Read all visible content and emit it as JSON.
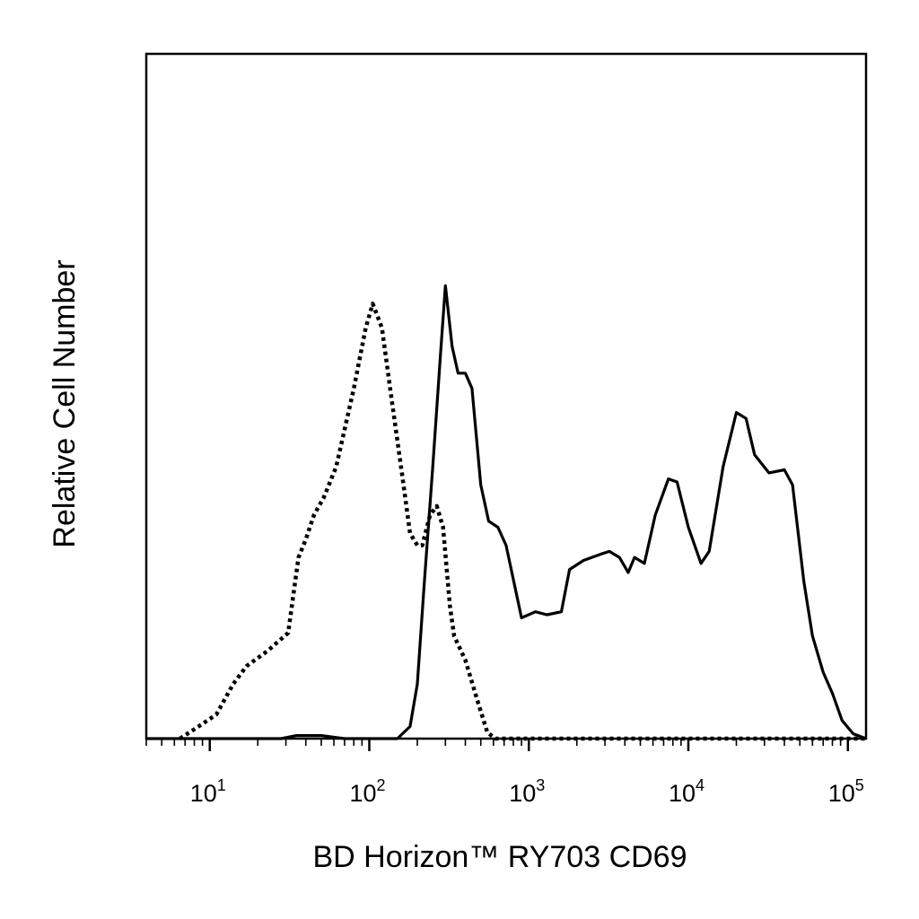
{
  "chart_data": {
    "type": "line",
    "title": "",
    "xlabel": "BD Horizon™ RY703 CD69",
    "ylabel": "Relative Cell Number",
    "x_scale": "log",
    "xlim": [
      4,
      130000
    ],
    "ylim": [
      0,
      1
    ],
    "grid": false,
    "legend": "none",
    "x_tick_labels": [
      {
        "value": 10,
        "base": "10",
        "exp": "1"
      },
      {
        "value": 100,
        "base": "10",
        "exp": "2"
      },
      {
        "value": 1000,
        "base": "10",
        "exp": "3"
      },
      {
        "value": 10000,
        "base": "10",
        "exp": "4"
      },
      {
        "value": 100000,
        "base": "10",
        "exp": "5"
      }
    ],
    "series": [
      {
        "style": "dotted",
        "color": "#000000",
        "points": [
          [
            6.5,
            0.0
          ],
          [
            8.5,
            0.02
          ],
          [
            11,
            0.04
          ],
          [
            14,
            0.09
          ],
          [
            17,
            0.12
          ],
          [
            23,
            0.145
          ],
          [
            31,
            0.175
          ],
          [
            36,
            0.3
          ],
          [
            40,
            0.33
          ],
          [
            45,
            0.37
          ],
          [
            52,
            0.4
          ],
          [
            62,
            0.45
          ],
          [
            80,
            0.58
          ],
          [
            95,
            0.68
          ],
          [
            105,
            0.72
          ],
          [
            120,
            0.68
          ],
          [
            135,
            0.58
          ],
          [
            160,
            0.44
          ],
          [
            180,
            0.34
          ],
          [
            200,
            0.32
          ],
          [
            215,
            0.32
          ],
          [
            240,
            0.37
          ],
          [
            265,
            0.385
          ],
          [
            290,
            0.35
          ],
          [
            320,
            0.22
          ],
          [
            340,
            0.17
          ],
          [
            400,
            0.13
          ],
          [
            480,
            0.06
          ],
          [
            550,
            0.01
          ],
          [
            620,
            0.0
          ],
          [
            1000,
            0.0
          ],
          [
            10000,
            0.0
          ],
          [
            130000,
            0.0
          ]
        ]
      },
      {
        "style": "solid",
        "color": "#000000",
        "points": [
          [
            4,
            0.0
          ],
          [
            28,
            0.0
          ],
          [
            35,
            0.005
          ],
          [
            50,
            0.005
          ],
          [
            70,
            0.0
          ],
          [
            150,
            0.0
          ],
          [
            180,
            0.02
          ],
          [
            200,
            0.09
          ],
          [
            220,
            0.25
          ],
          [
            250,
            0.45
          ],
          [
            280,
            0.64
          ],
          [
            300,
            0.75
          ],
          [
            330,
            0.65
          ],
          [
            360,
            0.605
          ],
          [
            400,
            0.605
          ],
          [
            440,
            0.58
          ],
          [
            500,
            0.42
          ],
          [
            560,
            0.36
          ],
          [
            640,
            0.35
          ],
          [
            720,
            0.32
          ],
          [
            900,
            0.2
          ],
          [
            1100,
            0.21
          ],
          [
            1300,
            0.205
          ],
          [
            1600,
            0.21
          ],
          [
            1800,
            0.28
          ],
          [
            2200,
            0.295
          ],
          [
            2800,
            0.305
          ],
          [
            3200,
            0.31
          ],
          [
            3700,
            0.3
          ],
          [
            4200,
            0.275
          ],
          [
            4600,
            0.3
          ],
          [
            5300,
            0.29
          ],
          [
            6200,
            0.37
          ],
          [
            7500,
            0.43
          ],
          [
            8500,
            0.425
          ],
          [
            10000,
            0.35
          ],
          [
            12000,
            0.29
          ],
          [
            13500,
            0.31
          ],
          [
            16500,
            0.45
          ],
          [
            20000,
            0.54
          ],
          [
            23000,
            0.53
          ],
          [
            26000,
            0.47
          ],
          [
            32000,
            0.44
          ],
          [
            40000,
            0.445
          ],
          [
            45000,
            0.42
          ],
          [
            53000,
            0.26
          ],
          [
            60000,
            0.17
          ],
          [
            70000,
            0.11
          ],
          [
            80000,
            0.075
          ],
          [
            92000,
            0.03
          ],
          [
            108000,
            0.008
          ],
          [
            130000,
            0.0
          ]
        ]
      }
    ]
  }
}
